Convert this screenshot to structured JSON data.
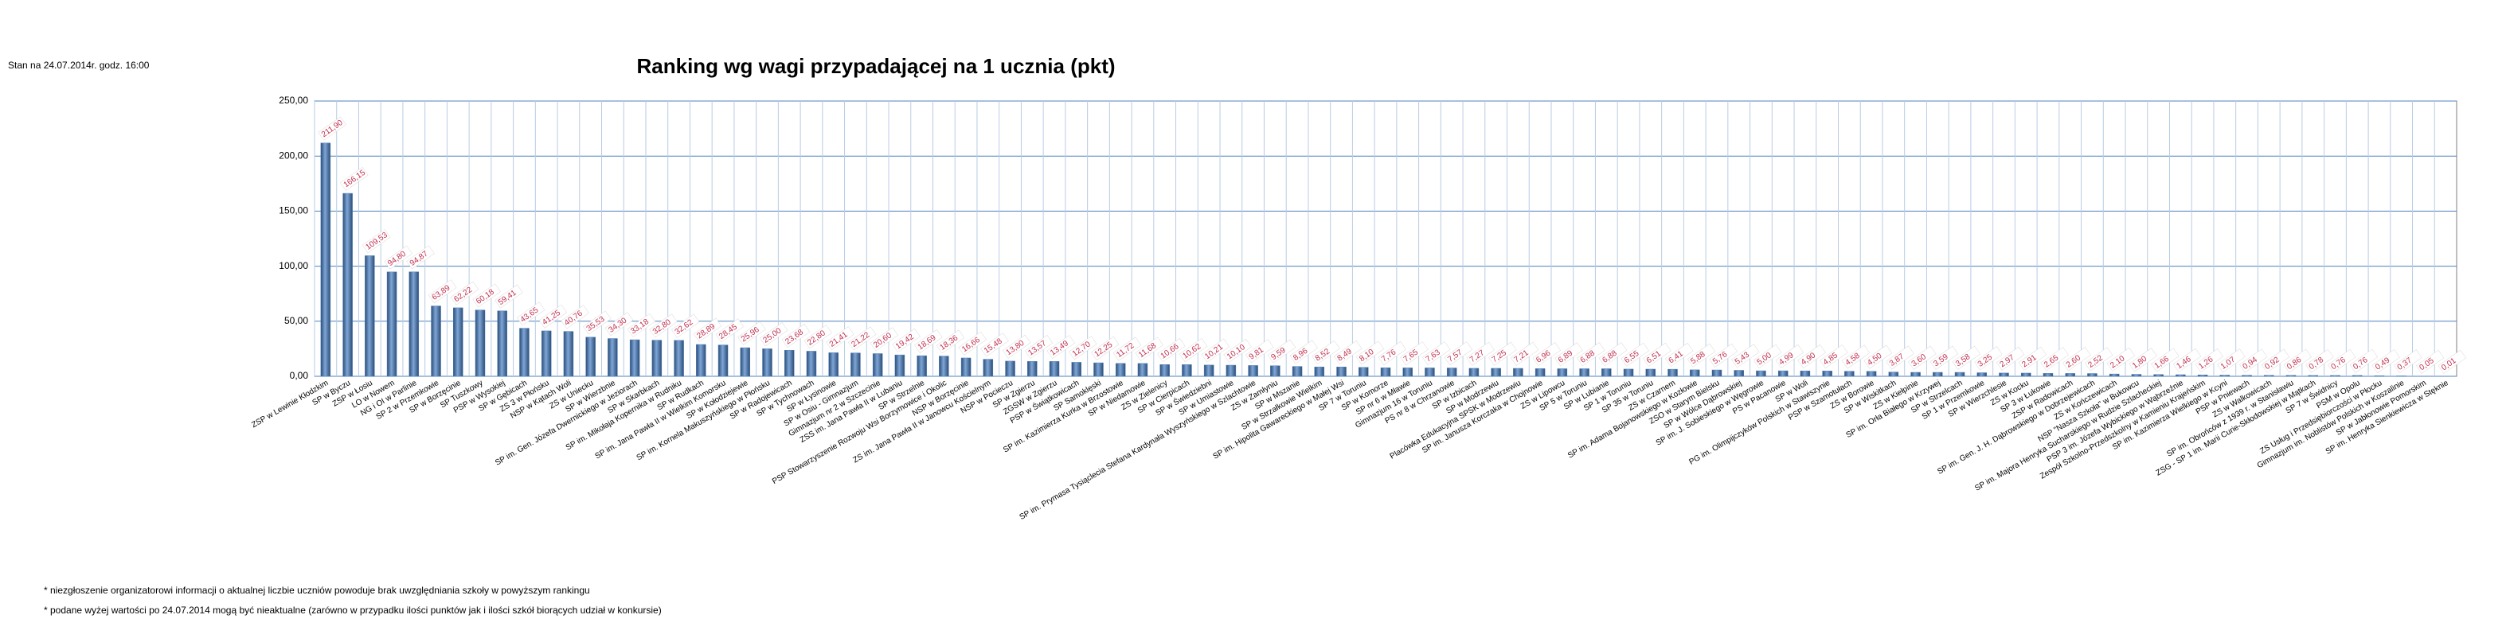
{
  "stamp": "Stan na 24.07.2014r.  godz. 16:00",
  "notes": [
    "* niezgłoszenie organizatorowi informacji o aktualnej liczbie uczniów powoduje brak uwzględniania szkoły w powyższym rankingu",
    "* podane wyżej wartości po 24.07.2014  mogą być nieaktualne (zarówno w przypadku ilości punktów jak i ilości szkół biorących udział w konkursie)"
  ],
  "chart_data": {
    "type": "bar",
    "title": "Ranking wg wagi przypadającej na 1 ucznia (pkt)",
    "color": "#4f81bd",
    "grid": true,
    "ylim": [
      0,
      250
    ],
    "yticks": [
      {
        "value": 0,
        "label": "0,00"
      },
      {
        "value": 50,
        "label": "50,00"
      },
      {
        "value": 100,
        "label": "100,00"
      },
      {
        "value": 150,
        "label": "150,00"
      },
      {
        "value": 200,
        "label": "200,00"
      },
      {
        "value": 250,
        "label": "250,00"
      }
    ],
    "categories": [
      "ZSP w Lewinie Kłodzkim",
      "SP w Byczu",
      "ZSP w Łosiu",
      "LO w Nowem",
      "NG i OI w Parlinie",
      "SP 2 w Przemkowie",
      "SP w Borzęcinie",
      "SP Tuszkowy",
      "PSP w Wysokiej",
      "SP w Gębicach",
      "ZS 3 w Płońsku",
      "NSP w Kątach Woli",
      "ZS w Uniecku",
      "SP w Wierzbnie",
      "SP im. Gen. Józefa Dwernickiego w Jeziorach",
      "SP w Skarbkach",
      "SP im. Mikołaja Kopernika w Rudniku",
      "SP w Rudkach",
      "SP im. Jana Pawła II w Wielkim Komorsku",
      "SP w Kołodziejewie",
      "SP im. Kornela Makuszyńskiego w Płońsku",
      "SP w Radojewicach",
      "SP w Tychnowach",
      "SP w Łysinowie",
      "SP w Osiu - Gimnazjum",
      "Gimnazjum nr 2 w Szczecinie",
      "ZSS im. Jana Pawła II w Lubaniu",
      "SP w Strzelnie",
      "PSP Stowarzyszenie Rozwoju Wsi Borzymowice i Okolic",
      "NSP w Borzęcinie",
      "ZS im. Jana Pawła II w Janowcu Kościelnym",
      "NSP w Pocieczu",
      "SP w Zgierzu",
      "ZGSW w Zgierzu",
      "PSP w Świątkowicach",
      "SP Samoklęski",
      "SP im. Kazimierza Kurka w Brzostowie",
      "SP w Niedamowie",
      "ZS w Zielenicy",
      "SP w Cierpicach",
      "SP w Świedziebni",
      "SP w Umiastowie",
      "SP im. Prymasa Tysiąclecia Stefana Kardynała Wyszyńskiego w Szlachtowie",
      "ZS w Zamłyniu",
      "SP w Mszanie",
      "SP w Strzałkowie Wielkim",
      "SP im. Hipolita Gawareckiego w Małej Wsi",
      "SP 7 w Toruniu",
      "SP w Komorze",
      "SP nr 6 w Mławie",
      "Gimnazjum 16 w Toruniu",
      "PS nr 8 w Chrzanowie",
      "SP w Izbicach",
      "SP w Modrzewiu",
      "Placówka Edukacyjna SPSK w Modrzewiu",
      "SP im. Janusza Korczaka w Chojnowie",
      "ZS w Lipowcu",
      "SP 5 w Toruniu",
      "SP w Lubianie",
      "SP 1 w Toruniu",
      "SP 35 w Toruniu",
      "ZS w Czarnem",
      "SP im. Adama Bojanowskiego w Kozłowie",
      "ZSO w Starym Bielsku",
      "SP w Wólce Dąbrowskiej",
      "SP im. J. Sobieskiego w Węgrowie",
      "PS w Pacanowie",
      "SP w Woli",
      "PG im. Olimpijczyków Polskich w Stawiszynie",
      "PSP w Szamotułach",
      "ZS w Borowie",
      "SP w Wiskitkach",
      "ZS w Kiełpinie",
      "SP im. Orła Białego w Krzywej",
      "SP w Strzelcach",
      "SP 1 w Przemkowie",
      "SP w Wierzchlesie",
      "ZS w Kocku",
      "SP 3 w Łukowie",
      "ZSP w Radowicach",
      "SP im. Gen. J. H. Dąbrowskiego w Dobrzejewicach",
      "ZS w Kończewicach",
      "NSP \"Nasza Szkoła\" w Bukowcu",
      "SP im. Majora Henryka Sucharskiego w Rudzie Szlacheckiej",
      "PSP 3 im. Józefa Wybickiego w Wąbrzeźnie",
      "Zespół Szkolno-Przedszkolny w Kamieniu Krajeńskim",
      "SP im. Kazimierza Wielkiego w Kcyni",
      "PSP w Pniewach",
      "ZS w Walkowicach",
      "SP im. Obrońców z 1939 r. w Stanisławiu",
      "ZSG - SP 1 im. Marii Curie-Skłodowskiej w Mątkach",
      "SP 7 w Świdnicy",
      "PSM w Opolu",
      "ZS Usług i Przedsiębiorczości w Płocku",
      "Gimnazjum im. Noblistów Polskich w Koszalinie",
      "SP w Jabłonowie Pomorskim",
      "SP im. Henryka Sienkiewicza w Stęknie"
    ],
    "values": [
      211.9,
      166.15,
      109.53,
      94.8,
      94.87,
      63.89,
      62.22,
      60.18,
      59.41,
      43.65,
      41.25,
      40.76,
      35.53,
      34.3,
      33.18,
      32.8,
      32.62,
      28.89,
      28.45,
      25.96,
      25.0,
      23.68,
      22.8,
      21.41,
      21.22,
      20.6,
      19.42,
      18.69,
      18.36,
      16.66,
      15.48,
      13.8,
      13.57,
      13.49,
      12.7,
      12.25,
      11.72,
      11.68,
      10.66,
      10.62,
      10.21,
      10.1,
      9.81,
      9.59,
      8.96,
      8.52,
      8.49,
      8.1,
      7.76,
      7.65,
      7.63,
      7.57,
      7.27,
      7.25,
      7.21,
      6.96,
      6.89,
      6.88,
      6.88,
      6.55,
      6.51,
      6.41,
      5.88,
      5.76,
      5.43,
      5.0,
      4.99,
      4.9,
      4.85,
      4.58,
      4.5,
      3.87,
      3.6,
      3.59,
      3.58,
      3.25,
      2.97,
      2.91,
      2.65,
      2.6,
      2.52,
      2.1,
      1.8,
      1.66,
      1.46,
      1.26,
      1.07,
      0.94,
      0.92,
      0.86,
      0.78,
      0.76,
      0.76,
      0.49,
      0.37,
      0.05,
      0.01
    ],
    "value_labels": [
      "211,90",
      "166,15",
      "109,53",
      "94,80",
      "94,87",
      "63,89",
      "62,22",
      "60,18",
      "59,41",
      "43,65",
      "41,25",
      "40,76",
      "35,53",
      "34,30",
      "33,18",
      "32,80",
      "32,62",
      "28,89",
      "28,45",
      "25,96",
      "25,00",
      "23,68",
      "22,80",
      "21,41",
      "21,22",
      "20,60",
      "19,42",
      "18,69",
      "18,36",
      "16,66",
      "15,48",
      "13,80",
      "13,57",
      "13,49",
      "12,70",
      "12,25",
      "11,72",
      "11,68",
      "10,66",
      "10,62",
      "10,21",
      "10,10",
      "9,81",
      "9,59",
      "8,96",
      "8,52",
      "8,49",
      "8,10",
      "7,76",
      "7,65",
      "7,63",
      "7,57",
      "7,27",
      "7,25",
      "7,21",
      "6,96",
      "6,89",
      "6,88",
      "6,88",
      "6,55",
      "6,51",
      "6,41",
      "5,88",
      "5,76",
      "5,43",
      "5,00",
      "4,99",
      "4,90",
      "4,85",
      "4,58",
      "4,50",
      "3,87",
      "3,60",
      "3,59",
      "3,58",
      "3,25",
      "2,97",
      "2,91",
      "2,65",
      "2,60",
      "2,52",
      "2,10",
      "1,80",
      "1,66",
      "1,46",
      "1,26",
      "1,07",
      "0,94",
      "0,92",
      "0,86",
      "0,78",
      "0,76",
      "0,76",
      "0,49",
      "0,37",
      "0,05",
      "0,01"
    ]
  }
}
